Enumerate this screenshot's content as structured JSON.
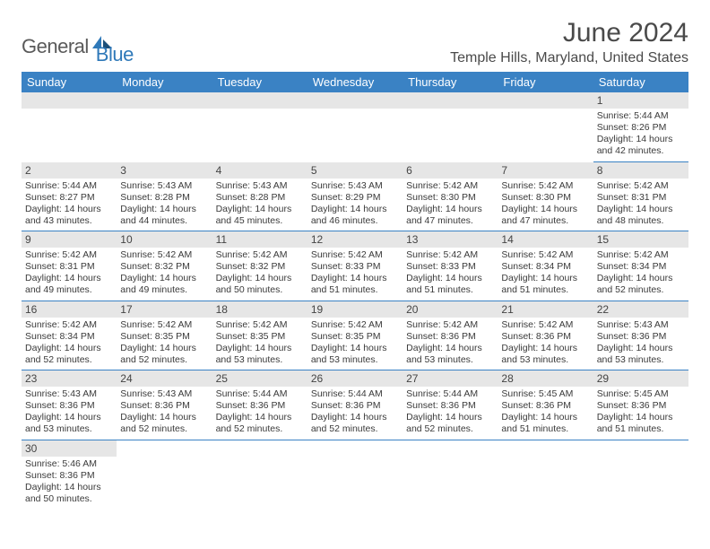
{
  "logo": {
    "general": "General",
    "blue": "Blue"
  },
  "title": "June 2024",
  "location": "Temple Hills, Maryland, United States",
  "daysOfWeek": [
    "Sunday",
    "Monday",
    "Tuesday",
    "Wednesday",
    "Thursday",
    "Friday",
    "Saturday"
  ],
  "colors": {
    "headerBlue": "#3a82c4",
    "dayBarGray": "#e6e6e6",
    "borderBlue": "#3a82c4",
    "logoBlue": "#2f79b9",
    "logoGray": "#5a5a5a"
  },
  "grid": [
    [
      null,
      null,
      null,
      null,
      null,
      null,
      {
        "n": "1",
        "sunrise": "Sunrise: 5:44 AM",
        "sunset": "Sunset: 8:26 PM",
        "daylight": "Daylight: 14 hours and 42 minutes."
      }
    ],
    [
      {
        "n": "2",
        "sunrise": "Sunrise: 5:44 AM",
        "sunset": "Sunset: 8:27 PM",
        "daylight": "Daylight: 14 hours and 43 minutes."
      },
      {
        "n": "3",
        "sunrise": "Sunrise: 5:43 AM",
        "sunset": "Sunset: 8:28 PM",
        "daylight": "Daylight: 14 hours and 44 minutes."
      },
      {
        "n": "4",
        "sunrise": "Sunrise: 5:43 AM",
        "sunset": "Sunset: 8:28 PM",
        "daylight": "Daylight: 14 hours and 45 minutes."
      },
      {
        "n": "5",
        "sunrise": "Sunrise: 5:43 AM",
        "sunset": "Sunset: 8:29 PM",
        "daylight": "Daylight: 14 hours and 46 minutes."
      },
      {
        "n": "6",
        "sunrise": "Sunrise: 5:42 AM",
        "sunset": "Sunset: 8:30 PM",
        "daylight": "Daylight: 14 hours and 47 minutes."
      },
      {
        "n": "7",
        "sunrise": "Sunrise: 5:42 AM",
        "sunset": "Sunset: 8:30 PM",
        "daylight": "Daylight: 14 hours and 47 minutes."
      },
      {
        "n": "8",
        "sunrise": "Sunrise: 5:42 AM",
        "sunset": "Sunset: 8:31 PM",
        "daylight": "Daylight: 14 hours and 48 minutes."
      }
    ],
    [
      {
        "n": "9",
        "sunrise": "Sunrise: 5:42 AM",
        "sunset": "Sunset: 8:31 PM",
        "daylight": "Daylight: 14 hours and 49 minutes."
      },
      {
        "n": "10",
        "sunrise": "Sunrise: 5:42 AM",
        "sunset": "Sunset: 8:32 PM",
        "daylight": "Daylight: 14 hours and 49 minutes."
      },
      {
        "n": "11",
        "sunrise": "Sunrise: 5:42 AM",
        "sunset": "Sunset: 8:32 PM",
        "daylight": "Daylight: 14 hours and 50 minutes."
      },
      {
        "n": "12",
        "sunrise": "Sunrise: 5:42 AM",
        "sunset": "Sunset: 8:33 PM",
        "daylight": "Daylight: 14 hours and 51 minutes."
      },
      {
        "n": "13",
        "sunrise": "Sunrise: 5:42 AM",
        "sunset": "Sunset: 8:33 PM",
        "daylight": "Daylight: 14 hours and 51 minutes."
      },
      {
        "n": "14",
        "sunrise": "Sunrise: 5:42 AM",
        "sunset": "Sunset: 8:34 PM",
        "daylight": "Daylight: 14 hours and 51 minutes."
      },
      {
        "n": "15",
        "sunrise": "Sunrise: 5:42 AM",
        "sunset": "Sunset: 8:34 PM",
        "daylight": "Daylight: 14 hours and 52 minutes."
      }
    ],
    [
      {
        "n": "16",
        "sunrise": "Sunrise: 5:42 AM",
        "sunset": "Sunset: 8:34 PM",
        "daylight": "Daylight: 14 hours and 52 minutes."
      },
      {
        "n": "17",
        "sunrise": "Sunrise: 5:42 AM",
        "sunset": "Sunset: 8:35 PM",
        "daylight": "Daylight: 14 hours and 52 minutes."
      },
      {
        "n": "18",
        "sunrise": "Sunrise: 5:42 AM",
        "sunset": "Sunset: 8:35 PM",
        "daylight": "Daylight: 14 hours and 53 minutes."
      },
      {
        "n": "19",
        "sunrise": "Sunrise: 5:42 AM",
        "sunset": "Sunset: 8:35 PM",
        "daylight": "Daylight: 14 hours and 53 minutes."
      },
      {
        "n": "20",
        "sunrise": "Sunrise: 5:42 AM",
        "sunset": "Sunset: 8:36 PM",
        "daylight": "Daylight: 14 hours and 53 minutes."
      },
      {
        "n": "21",
        "sunrise": "Sunrise: 5:42 AM",
        "sunset": "Sunset: 8:36 PM",
        "daylight": "Daylight: 14 hours and 53 minutes."
      },
      {
        "n": "22",
        "sunrise": "Sunrise: 5:43 AM",
        "sunset": "Sunset: 8:36 PM",
        "daylight": "Daylight: 14 hours and 53 minutes."
      }
    ],
    [
      {
        "n": "23",
        "sunrise": "Sunrise: 5:43 AM",
        "sunset": "Sunset: 8:36 PM",
        "daylight": "Daylight: 14 hours and 53 minutes."
      },
      {
        "n": "24",
        "sunrise": "Sunrise: 5:43 AM",
        "sunset": "Sunset: 8:36 PM",
        "daylight": "Daylight: 14 hours and 52 minutes."
      },
      {
        "n": "25",
        "sunrise": "Sunrise: 5:44 AM",
        "sunset": "Sunset: 8:36 PM",
        "daylight": "Daylight: 14 hours and 52 minutes."
      },
      {
        "n": "26",
        "sunrise": "Sunrise: 5:44 AM",
        "sunset": "Sunset: 8:36 PM",
        "daylight": "Daylight: 14 hours and 52 minutes."
      },
      {
        "n": "27",
        "sunrise": "Sunrise: 5:44 AM",
        "sunset": "Sunset: 8:36 PM",
        "daylight": "Daylight: 14 hours and 52 minutes."
      },
      {
        "n": "28",
        "sunrise": "Sunrise: 5:45 AM",
        "sunset": "Sunset: 8:36 PM",
        "daylight": "Daylight: 14 hours and 51 minutes."
      },
      {
        "n": "29",
        "sunrise": "Sunrise: 5:45 AM",
        "sunset": "Sunset: 8:36 PM",
        "daylight": "Daylight: 14 hours and 51 minutes."
      }
    ],
    [
      {
        "n": "30",
        "sunrise": "Sunrise: 5:46 AM",
        "sunset": "Sunset: 8:36 PM",
        "daylight": "Daylight: 14 hours and 50 minutes."
      },
      null,
      null,
      null,
      null,
      null,
      null
    ]
  ]
}
